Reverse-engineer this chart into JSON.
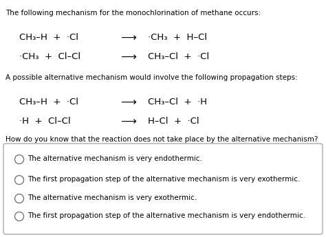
{
  "background_color": "#ffffff",
  "fig_width": 4.74,
  "fig_height": 3.45,
  "dpi": 100,
  "header_text": "The following mechanism for the monochlorination of methane occurs:",
  "alt_text": "A possible alternative mechanism would involve the following propagation steps:",
  "question_text": "How do you know that the reaction does not take place by the alternative mechanism?",
  "eq1_left": "CH₃–H  +  ·Cl",
  "eq1_right": "·CH₃  +  H–Cl",
  "eq2_left": "·CH₃  +  Cl–Cl",
  "eq2_right": "CH₃–Cl  +  ·Cl",
  "eq3_left": "CH₃–H  +  ·Cl",
  "eq3_right": "CH₃–Cl  +  ·H",
  "eq4_left": "·H  +  Cl–Cl",
  "eq4_right": "H–Cl  +  ·Cl",
  "options": [
    "The alternative mechanism is very endothermic.",
    "The first propagation step of the alternative mechanism is very exothermic.",
    "The alternative mechanism is very exothermic.",
    "The first propagation step of the alternative mechanism is very endothermic."
  ],
  "option_bold": [
    false,
    false,
    false,
    false
  ],
  "box_color": "#aaaaaa",
  "text_color": "#000000",
  "eq_fontsize": 9.5,
  "header_fontsize": 7.5,
  "option_fontsize": 7.5,
  "question_fontsize": 7.5
}
